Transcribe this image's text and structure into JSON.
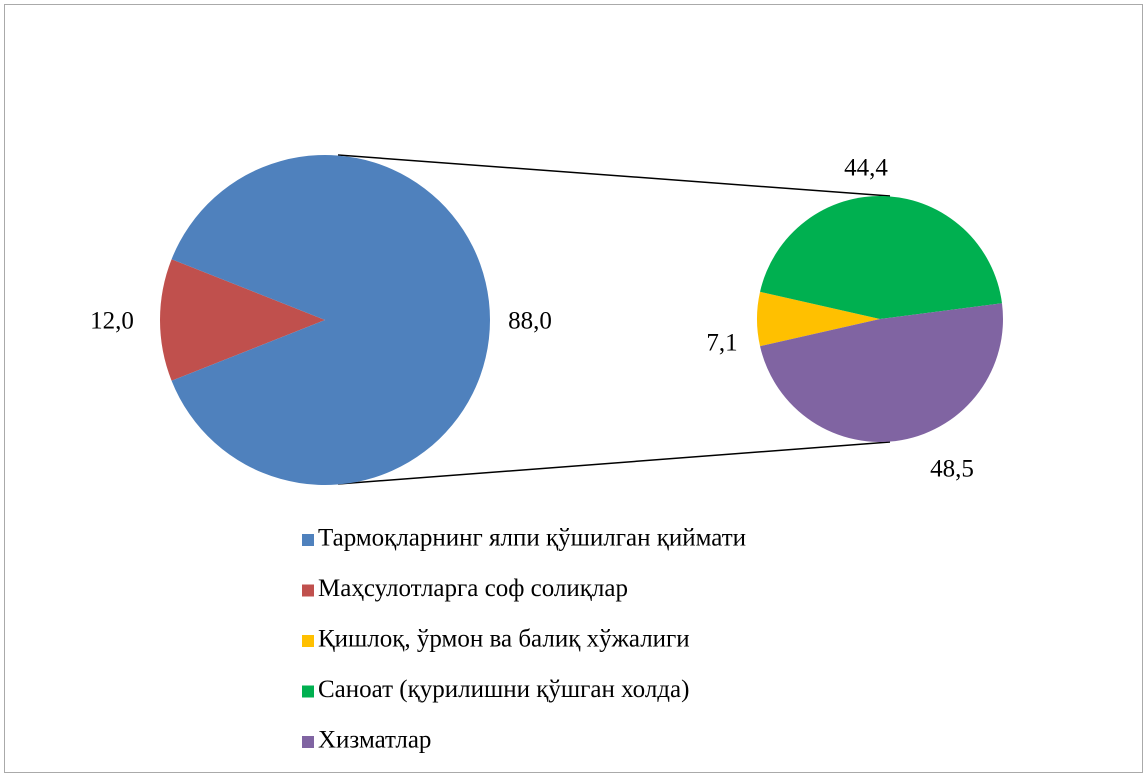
{
  "chart_data": {
    "type": "pie",
    "categories": [
      "Тармоқларнинг ялпи қўшилган қиймати",
      "Маҳсулотларга соф солиқлар",
      "Қишлоқ, ўрмон ва балиқ хўжалиги",
      "Саноат (қурилишни қўшган холда)",
      "Хизматлар"
    ],
    "colors": [
      "#4f81bd",
      "#c0504d",
      "#ffc000",
      "#00b050",
      "#8064a2"
    ],
    "main": {
      "values": [
        88,
        12
      ],
      "value_labels": [
        "88,0",
        "12,0"
      ]
    },
    "secondary": {
      "values": [
        7.1,
        44.4,
        48.5
      ],
      "value_labels": [
        "7,1",
        "44,4",
        "48,5"
      ]
    }
  }
}
